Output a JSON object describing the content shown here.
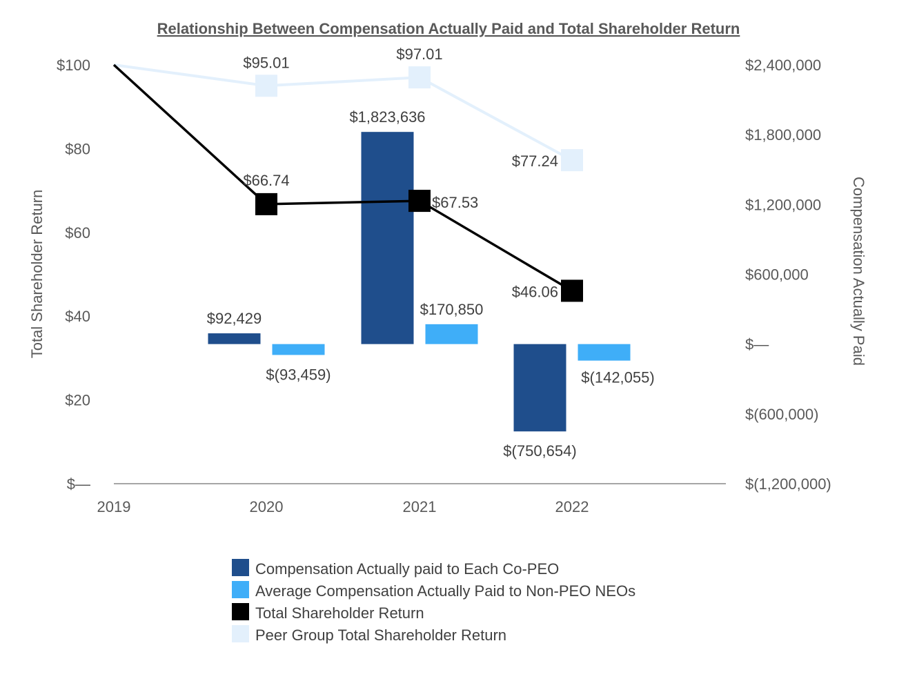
{
  "chart_data": {
    "type": "bar+line",
    "title": "Relationship Between Compensation Actually Paid and Total Shareholder Return",
    "categories": [
      "2019",
      "2020",
      "2021",
      "2022"
    ],
    "y_left": {
      "label": "Total Shareholder Return",
      "range": [
        0,
        100
      ],
      "ticks": [
        0,
        20,
        40,
        60,
        80,
        100
      ],
      "tick_labels": [
        "$—",
        "$20",
        "$40",
        "$60",
        "$80",
        "$100"
      ]
    },
    "y_right": {
      "label": "Compensation Actually Paid",
      "range": [
        -1200000,
        2400000
      ],
      "ticks": [
        -1200000,
        -600000,
        0,
        600000,
        1200000,
        1800000,
        2400000
      ],
      "tick_labels": [
        "$(1,200,000)",
        "$(600,000)",
        "$—",
        "$600,000",
        "$1,200,000",
        "$1,800,000",
        "$2,400,000"
      ]
    },
    "series": [
      {
        "name": "Compensation Actually paid to Each Co-PEO",
        "type": "bar",
        "axis": "right",
        "color": "#1F4E8C",
        "values": [
          null,
          92429,
          1823636,
          -750654
        ],
        "labels": [
          "",
          "$92,429",
          "$1,823,636",
          "$(750,654)"
        ]
      },
      {
        "name": "Average Compensation Actually Paid to Non-PEO NEOs",
        "type": "bar",
        "axis": "right",
        "color": "#3FAEF8",
        "values": [
          null,
          -93459,
          170850,
          -142055
        ],
        "labels": [
          "",
          "$(93,459)",
          "$170,850",
          "$(142,055)"
        ]
      },
      {
        "name": "Total Shareholder Return",
        "type": "line",
        "axis": "left",
        "color": "#000000",
        "values": [
          100,
          66.74,
          67.53,
          46.06
        ],
        "labels": [
          "",
          "$66.74",
          "$67.53",
          "$46.06"
        ]
      },
      {
        "name": "Peer Group Total Shareholder Return",
        "type": "line",
        "axis": "left",
        "color": "#E3F0FC",
        "values": [
          100,
          95.01,
          97.01,
          77.24
        ],
        "labels": [
          "",
          "$95.01",
          "$97.01",
          "$77.24"
        ]
      }
    ],
    "legend_position": "bottom"
  }
}
